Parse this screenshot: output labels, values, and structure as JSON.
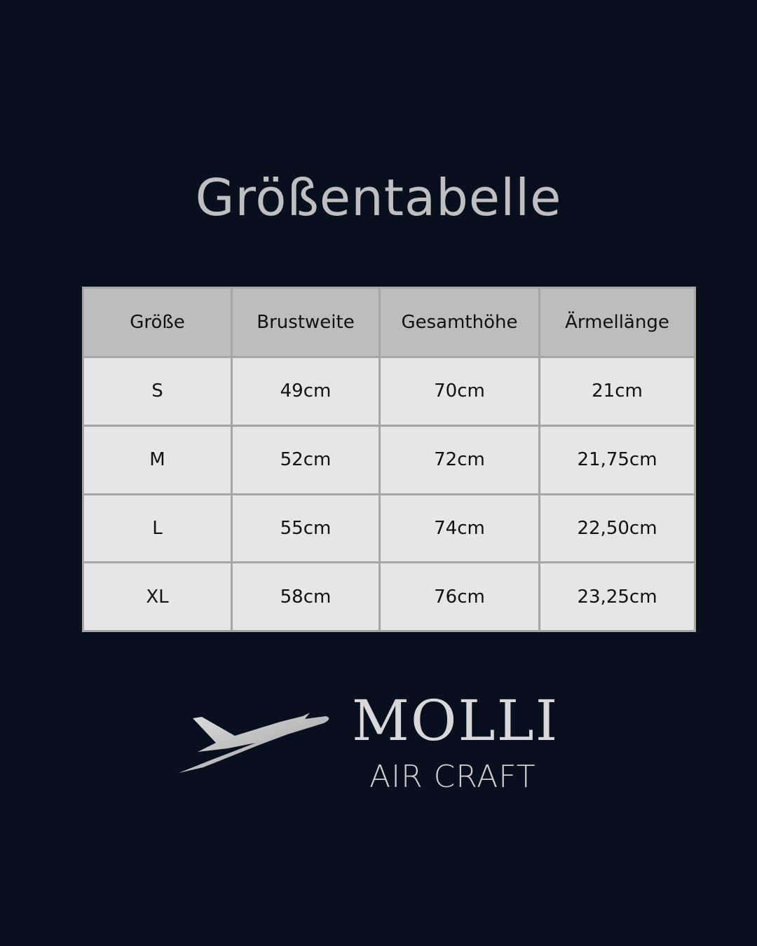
{
  "title": "Größentabelle",
  "table": {
    "headers": [
      "Größe",
      "Brustweite",
      "Gesamthöhe",
      "Ärmellänge"
    ],
    "rows": [
      [
        "S",
        "49cm",
        "70cm",
        "21cm"
      ],
      [
        "M",
        "52cm",
        "72cm",
        "21,75cm"
      ],
      [
        "L",
        "55cm",
        "74cm",
        "22,50cm"
      ],
      [
        "XL",
        "58cm",
        "76cm",
        "23,25cm"
      ]
    ]
  },
  "logo": {
    "name": "MOLLI",
    "subtitle": "AIR CRAFT",
    "icon": "airplane-icon"
  },
  "colors": {
    "background": "#08101e",
    "header": "#bdbdbd",
    "cell": "#e6e6e6",
    "border": "#a6a6a6",
    "title": "#bfbfbf"
  }
}
